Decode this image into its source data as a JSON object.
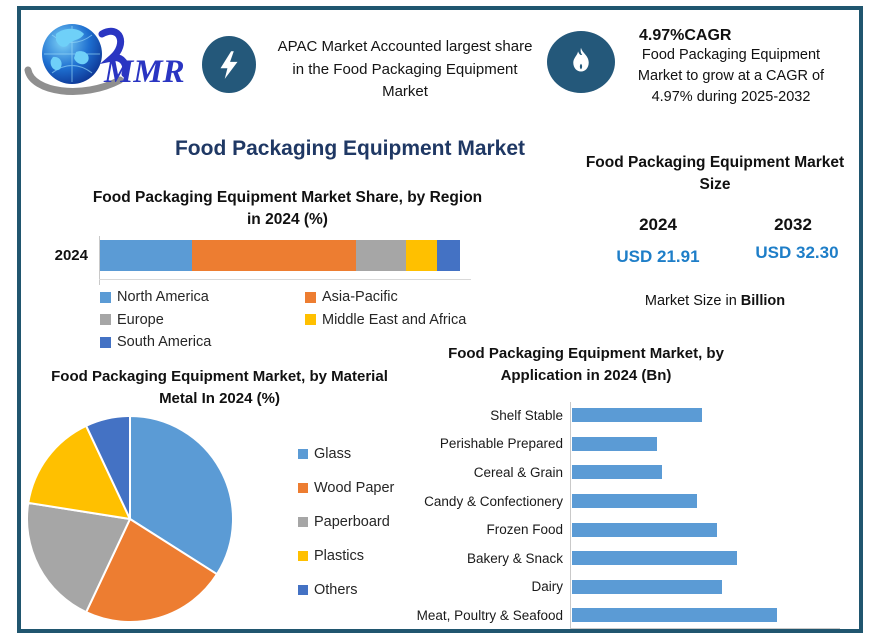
{
  "header": {
    "logo_text": "MMR",
    "highlight_text": "APAC Market Accounted largest share in the Food Packaging Equipment Market",
    "cagr_headline": "4.97%CAGR",
    "cagr_body": "Food Packaging Equipment Market to grow at a CAGR of 4.97% during 2025-2032",
    "icons": {
      "highlight": "lightning-bolt",
      "cagr": "flame"
    }
  },
  "main_title": "Food Packaging Equipment Market",
  "market_size": {
    "title": "Food Packaging Equipment Market Size",
    "year_left": "2024",
    "year_right": "2032",
    "value_left": "USD 21.91",
    "value_right": "USD 32.30",
    "note_prefix": "Market Size in ",
    "note_bold": "Billion",
    "value_color": "#1E7EC8"
  },
  "region_year_label": "2024",
  "chart_data": [
    {
      "id": "region-share",
      "type": "bar",
      "subtype": "stacked-horizontal",
      "title": "Food Packaging Equipment Market Share, by Region in 2024 (%)",
      "categories": [
        "2024"
      ],
      "series": [
        {
          "name": "North America",
          "values": [
            25.5
          ],
          "color": "#5B9BD5"
        },
        {
          "name": "Asia-Pacific",
          "values": [
            45.5
          ],
          "color": "#ED7D31"
        },
        {
          "name": "Europe",
          "values": [
            14
          ],
          "color": "#A6A6A6"
        },
        {
          "name": "Middle East and Africa",
          "values": [
            8.5
          ],
          "color": "#FFC000"
        },
        {
          "name": "South America",
          "values": [
            6.5
          ],
          "color": "#4472C4"
        }
      ],
      "xlim": [
        0,
        100
      ],
      "legend_position": "bottom"
    },
    {
      "id": "material-share",
      "type": "pie",
      "title": "Food Packaging Equipment Market, by Material Metal  In 2024 (%)",
      "labels": [
        "Glass",
        "Wood Paper",
        "Paperboard",
        "Plastics",
        "Others"
      ],
      "values": [
        34,
        23,
        20.5,
        15.5,
        7
      ],
      "colors": [
        "#5B9BD5",
        "#ED7D31",
        "#A6A6A6",
        "#FFC000",
        "#4472C4"
      ],
      "start_angle_deg": -90,
      "direction": "clockwise",
      "legend_position": "right"
    },
    {
      "id": "application-size",
      "type": "bar",
      "subtype": "horizontal",
      "title": "Food Packaging Equipment Market, by Application in 2024 (Bn)",
      "categories": [
        "Shelf Stable",
        "Perishable Prepared",
        "Cereal & Grain",
        "Candy & Confectionery",
        "Frozen Food",
        "Bakery & Snack",
        "Dairy",
        "Meat, Poultry & Seafood"
      ],
      "values": [
        2.6,
        1.7,
        1.8,
        2.5,
        2.9,
        3.3,
        3.0,
        4.1
      ],
      "bar_color": "#5B9BD5",
      "xlim": [
        0,
        4.5
      ],
      "grid": false
    }
  ],
  "colors": {
    "frame": "#20566F",
    "icon_badge": "#24587A",
    "title_navy": "#1F3864",
    "logo_blue": "#2A35C2"
  }
}
